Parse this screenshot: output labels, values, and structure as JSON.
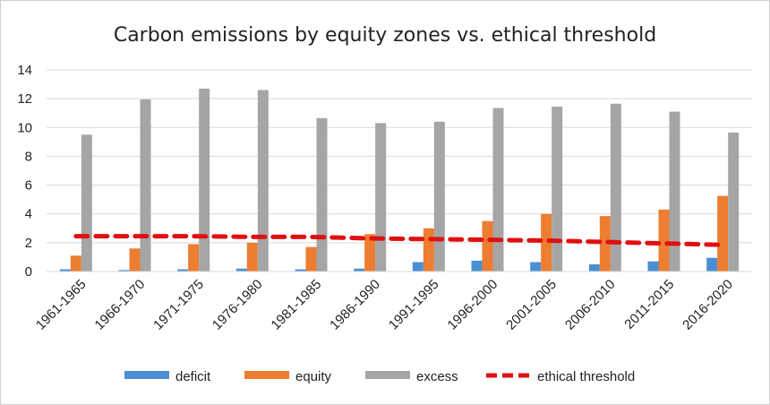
{
  "chart_data": {
    "type": "bar",
    "title": "Carbon emissions by equity zones vs. ethical threshold",
    "categories": [
      "1961-1965",
      "1966-1970",
      "1971-1975",
      "1976-1980",
      "1981-1985",
      "1986-1990",
      "1991-1995",
      "1996-2000",
      "2001-2005",
      "2006-2010",
      "2011-2015",
      "2016-2020"
    ],
    "ylim": [
      0,
      14
    ],
    "yticks": [
      0,
      2,
      4,
      6,
      8,
      10,
      12,
      14
    ],
    "grid": true,
    "legend_position": "bottom",
    "series": [
      {
        "name": "deficit",
        "type": "bar",
        "color": "#4a8fd4",
        "values": [
          0.15,
          0.1,
          0.15,
          0.2,
          0.15,
          0.2,
          0.65,
          0.75,
          0.65,
          0.5,
          0.7,
          0.95
        ]
      },
      {
        "name": "equity",
        "type": "bar",
        "color": "#ed7d31",
        "values": [
          1.1,
          1.6,
          1.9,
          2.0,
          1.7,
          2.6,
          3.0,
          3.5,
          4.0,
          3.85,
          4.3,
          5.25
        ]
      },
      {
        "name": "excess",
        "type": "bar",
        "color": "#a5a5a5",
        "values": [
          9.5,
          11.95,
          12.7,
          12.6,
          10.65,
          10.3,
          10.4,
          11.35,
          11.45,
          11.65,
          11.1,
          9.65
        ]
      },
      {
        "name": "ethical threshold",
        "type": "line",
        "style": "dashed",
        "color": "#e01010",
        "values": [
          2.45,
          2.45,
          2.45,
          2.4,
          2.4,
          2.3,
          2.25,
          2.2,
          2.15,
          2.05,
          1.95,
          1.85
        ]
      }
    ]
  }
}
